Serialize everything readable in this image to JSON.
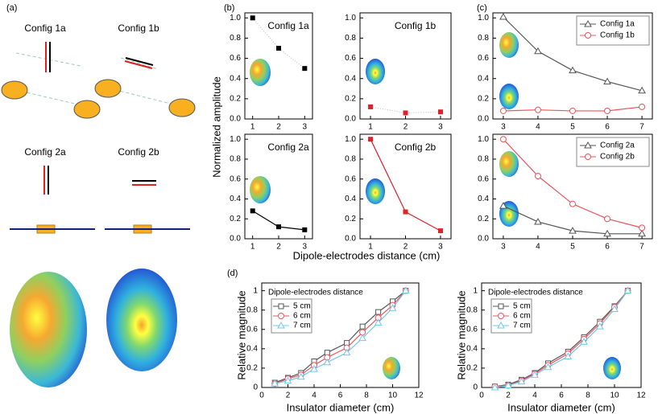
{
  "figure": {
    "panel_labels": [
      "(a)",
      "(b)",
      "(c)",
      "(d)"
    ],
    "config_labels": [
      "Config 1a",
      "Config 1b",
      "Config 2a",
      "Config 2b"
    ],
    "y_label_top": "Normalized amplitude",
    "x_label_top": "Dipole-electrodes distance (cm)"
  },
  "chart_data": [
    {
      "type": "line",
      "title": "Config 1a",
      "x": [
        1,
        2,
        3
      ],
      "xlim": [
        0.7,
        3.3
      ],
      "ylim": [
        0,
        1.05
      ],
      "xticks": [
        1,
        2,
        3
      ],
      "yticks": [
        {
          "value": 0,
          "label": "0.0"
        },
        0.2,
        0.4,
        0.6,
        0.8,
        {
          "value": 1,
          "label": "1.0"
        }
      ],
      "series": [
        {
          "color": "#000000",
          "line_color": "#bbbbbb",
          "line_style": "dotted",
          "marker": "square",
          "values": [
            1.0,
            0.7,
            0.5
          ]
        }
      ]
    },
    {
      "type": "line",
      "title": "Config 1b",
      "x": [
        1,
        2,
        3
      ],
      "xlim": [
        0.7,
        3.3
      ],
      "ylim": [
        0,
        1.05
      ],
      "xticks": [
        1,
        2,
        3
      ],
      "yticks": [
        {
          "value": 0,
          "label": "0.0"
        },
        0.2,
        0.4,
        0.6,
        0.8,
        {
          "value": 1,
          "label": "1.0"
        }
      ],
      "series": [
        {
          "color": "#e0202a",
          "line_color": "#bbbbbb",
          "line_style": "dotted",
          "marker": "square",
          "values": [
            0.12,
            0.06,
            0.07
          ]
        }
      ]
    },
    {
      "type": "line",
      "title": "Config 2a",
      "x": [
        1,
        2,
        3
      ],
      "xlim": [
        0.7,
        3.3
      ],
      "ylim": [
        0,
        1.05
      ],
      "xticks": [
        1,
        2,
        3
      ],
      "yticks": [
        {
          "value": 0,
          "label": "0.0"
        },
        0.2,
        0.4,
        0.6,
        0.8,
        {
          "value": 1,
          "label": "1.0"
        }
      ],
      "series": [
        {
          "color": "#000000",
          "line_color": "#000000",
          "line_style": "solid",
          "marker": "square",
          "values": [
            0.28,
            0.12,
            0.09
          ]
        }
      ]
    },
    {
      "type": "line",
      "title": "Config 2b",
      "x": [
        1,
        2,
        3
      ],
      "xlim": [
        0.7,
        3.3
      ],
      "ylim": [
        0,
        1.05
      ],
      "xticks": [
        1,
        2,
        3
      ],
      "yticks": [
        {
          "value": 0,
          "label": "0.0"
        },
        0.2,
        0.4,
        0.6,
        0.8,
        {
          "value": 1,
          "label": "1.0"
        }
      ],
      "series": [
        {
          "color": "#e0202a",
          "line_color": "#e0202a",
          "line_style": "solid",
          "marker": "square",
          "values": [
            1.0,
            0.27,
            0.08
          ]
        }
      ]
    },
    {
      "type": "line",
      "x": [
        3,
        4,
        5,
        6,
        7
      ],
      "xlim": [
        2.7,
        7.3
      ],
      "ylim": [
        0,
        1.05
      ],
      "xticks": [
        3,
        4,
        5,
        6,
        7
      ],
      "yticks": [
        {
          "value": 0,
          "label": "0.0"
        },
        0.2,
        0.4,
        0.6,
        0.8,
        {
          "value": 1,
          "label": "1.0"
        }
      ],
      "legend": "upper right",
      "series": [
        {
          "name": "Config 1a",
          "color": "#555555",
          "line_color": "#555555",
          "line_style": "solid",
          "marker": "triangle",
          "values": [
            1.01,
            0.67,
            0.48,
            0.37,
            0.28
          ]
        },
        {
          "name": "Config 1b",
          "color": "#f0505a",
          "line_color": "#f0505a",
          "line_style": "solid",
          "marker": "circle",
          "values": [
            0.08,
            0.09,
            0.08,
            0.08,
            0.12
          ]
        }
      ]
    },
    {
      "type": "line",
      "x": [
        3,
        4,
        5,
        6,
        7
      ],
      "xlim": [
        2.7,
        7.3
      ],
      "ylim": [
        0,
        1.05
      ],
      "xticks": [
        3,
        4,
        5,
        6,
        7
      ],
      "yticks": [
        {
          "value": 0,
          "label": "0.0"
        },
        0.2,
        0.4,
        0.6,
        0.8,
        {
          "value": 1,
          "label": "1.0"
        }
      ],
      "legend": "upper right",
      "series": [
        {
          "name": "Config 2a",
          "color": "#555555",
          "line_color": "#555555",
          "line_style": "solid",
          "marker": "triangle",
          "values": [
            0.33,
            0.17,
            0.08,
            0.05,
            0.05
          ]
        },
        {
          "name": "Config 2b",
          "color": "#f0505a",
          "line_color": "#f0505a",
          "line_style": "solid",
          "marker": "circle",
          "values": [
            1.0,
            0.63,
            0.35,
            0.2,
            0.11
          ]
        }
      ]
    },
    {
      "type": "line",
      "x_label": "Insulator diameter (cm)",
      "y_label": "Relative magnitude",
      "legend_title": "Dipole-electrodes distance",
      "legend": "upper left",
      "x": [
        1,
        2,
        3,
        4,
        5,
        6.5,
        7.7,
        8.9,
        10,
        11
      ],
      "xlim": [
        0,
        12
      ],
      "ylim": [
        0,
        1.08
      ],
      "xticks": [
        0,
        2,
        4,
        6,
        8,
        10,
        12
      ],
      "yticks": [
        0,
        0.2,
        0.4,
        0.6,
        0.8,
        1
      ],
      "series": [
        {
          "name": "5 cm",
          "color": "#555555",
          "line_color": "#555555",
          "line_style": "solid",
          "marker": "square-open",
          "values": [
            0.05,
            0.1,
            0.15,
            0.27,
            0.36,
            0.46,
            0.63,
            0.78,
            0.89,
            1.0
          ]
        },
        {
          "name": "6 cm",
          "color": "#ee5560",
          "line_color": "#ee5560",
          "line_style": "solid",
          "marker": "circle",
          "values": [
            0.04,
            0.09,
            0.13,
            0.23,
            0.31,
            0.41,
            0.57,
            0.72,
            0.85,
            1.0
          ]
        },
        {
          "name": "7 cm",
          "color": "#70c8ec",
          "line_color": "#70c8ec",
          "line_style": "solid",
          "marker": "triangle",
          "values": [
            0.04,
            0.07,
            0.11,
            0.19,
            0.26,
            0.36,
            0.51,
            0.67,
            0.82,
            1.0
          ]
        }
      ]
    },
    {
      "type": "line",
      "x_label": "Insulator diameter (cm)",
      "y_label": "Relative magnitude",
      "legend_title": "Dipole-electrodes distance",
      "legend": "upper left",
      "x": [
        1,
        2,
        3,
        4,
        5,
        6.5,
        7.7,
        8.9,
        10,
        11
      ],
      "xlim": [
        0,
        12
      ],
      "ylim": [
        0,
        1.08
      ],
      "xticks": [
        0,
        2,
        4,
        6,
        8,
        10,
        12
      ],
      "yticks": [
        0,
        0.2,
        0.4,
        0.6,
        0.8,
        1
      ],
      "series": [
        {
          "name": "5 cm",
          "color": "#555555",
          "line_color": "#555555",
          "line_style": "solid",
          "marker": "square-open",
          "values": [
            0.01,
            0.03,
            0.08,
            0.15,
            0.25,
            0.37,
            0.52,
            0.68,
            0.84,
            1.0
          ]
        },
        {
          "name": "6 cm",
          "color": "#ee5560",
          "line_color": "#ee5560",
          "line_style": "solid",
          "marker": "circle",
          "values": [
            0.01,
            0.02,
            0.07,
            0.14,
            0.23,
            0.35,
            0.5,
            0.66,
            0.83,
            1.0
          ]
        },
        {
          "name": "7 cm",
          "color": "#70c8ec",
          "line_color": "#70c8ec",
          "line_style": "solid",
          "marker": "triangle",
          "values": [
            0,
            0.02,
            0.06,
            0.13,
            0.21,
            0.32,
            0.47,
            0.63,
            0.81,
            1.0
          ]
        }
      ]
    }
  ]
}
